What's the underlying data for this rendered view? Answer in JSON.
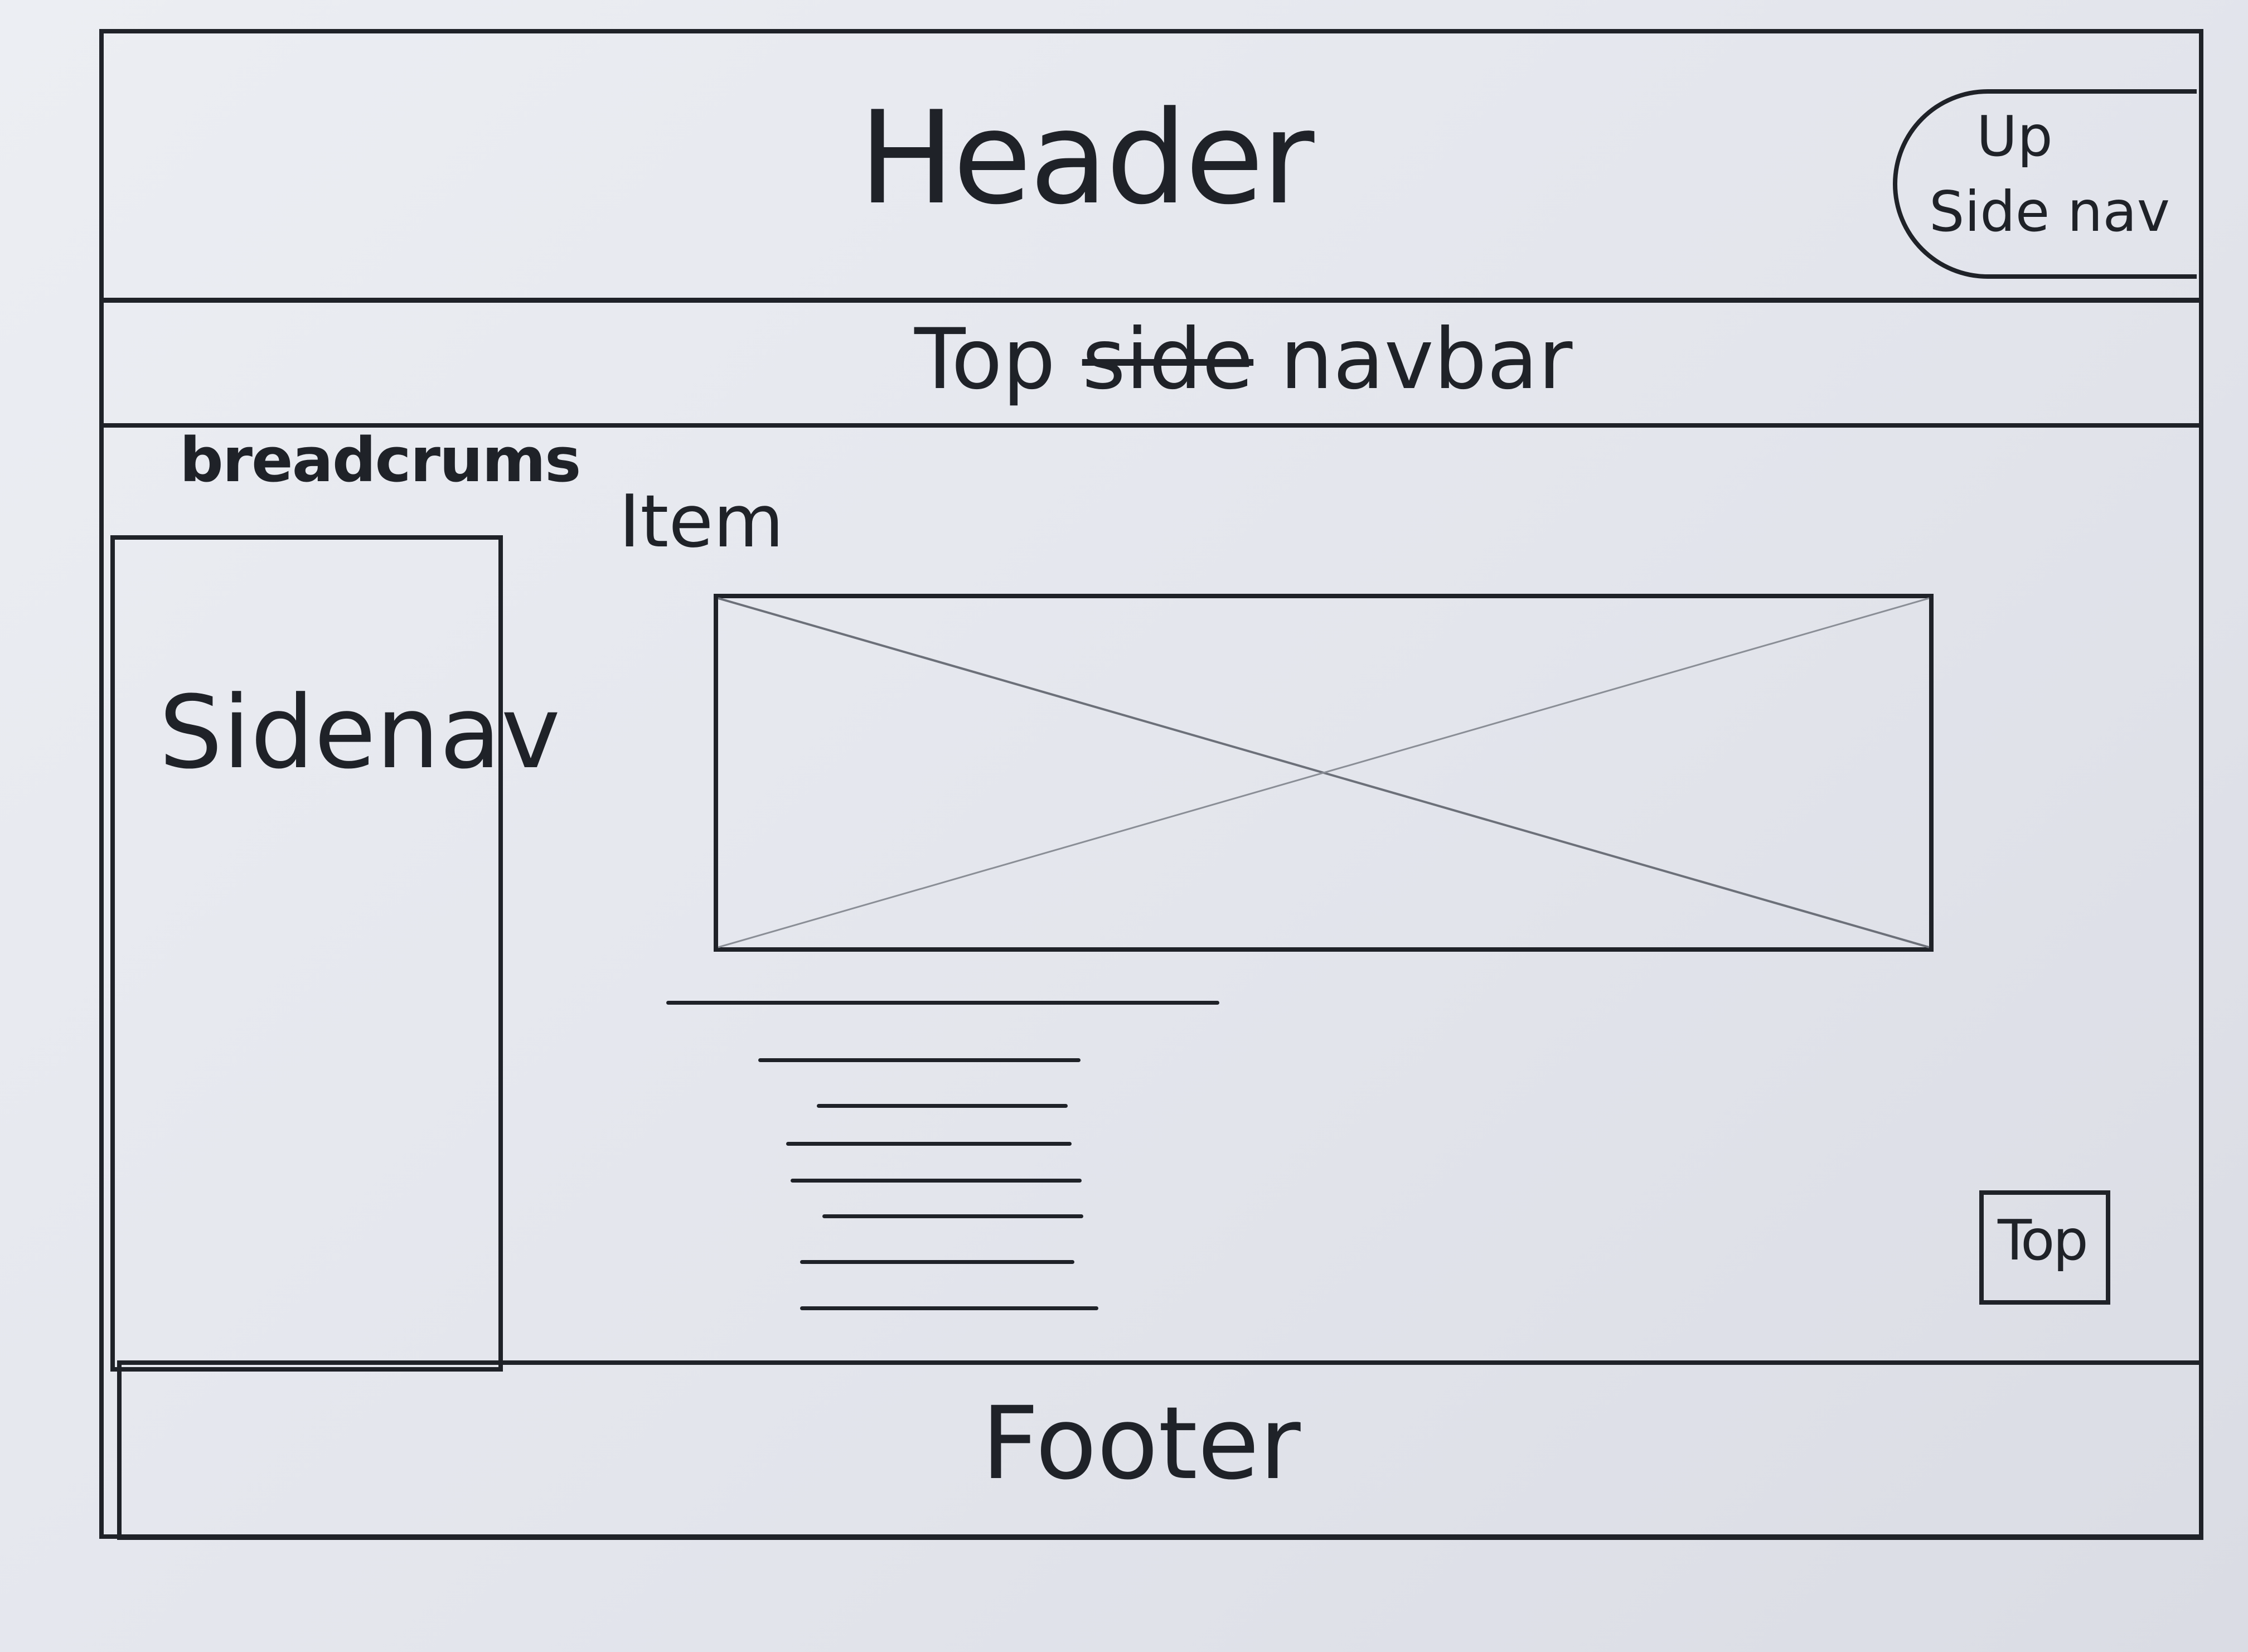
{
  "header": {
    "title": "Header",
    "up_side_nav": {
      "line1": "Up",
      "line2": "Side nav"
    }
  },
  "top_navbar": {
    "label_start": "Top",
    "struck_word": "side",
    "label_end": "navbar"
  },
  "breadcrumbs": {
    "label": "breadcrums"
  },
  "sidenav": {
    "label": "Sidenav"
  },
  "main": {
    "item_label": "Item",
    "image_placeholder_icon": "image-placeholder-icon"
  },
  "top_button": {
    "label": "Top"
  },
  "footer": {
    "label": "Footer"
  }
}
